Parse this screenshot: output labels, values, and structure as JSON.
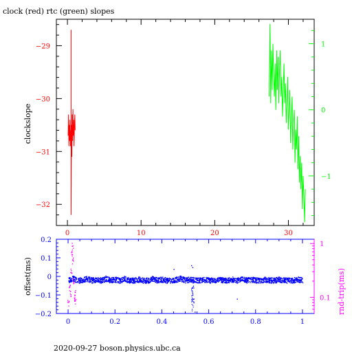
{
  "title": "clock (red) rtc (green) slopes",
  "footer": "2020-09-27 boson.physics.ubc.ca",
  "colors": {
    "clock": "#ff0000",
    "rtc": "#00ff00",
    "offset": "#0000ff",
    "rndtrip": "#ff00ff",
    "axis_bottom": "#0000ff",
    "axis_bottom_right": "#ff00ff"
  },
  "chart_data": [
    {
      "type": "line",
      "title": "clock (red) rtc (green) slopes",
      "ylabel": "clockslope",
      "xlim": [
        -1.5,
        33.5
      ],
      "ylim": [
        -32.4,
        -28.5
      ],
      "xticks": [
        0,
        10,
        20,
        30
      ],
      "yticks": [
        -29,
        -30,
        -31,
        -32
      ],
      "y2lim": [
        -1.75,
        1.37
      ],
      "y2ticks": [
        1,
        0,
        -1
      ],
      "series": [
        {
          "axis": "left",
          "color": "#ff0000",
          "x": [
            0.1,
            0.15,
            0.2,
            0.25,
            0.3,
            0.35,
            0.4,
            0.45,
            0.5,
            0.5,
            0.5,
            0.55,
            0.6,
            0.65,
            0.7,
            0.75,
            0.8,
            0.85,
            0.9,
            0.95,
            1.0,
            1.05
          ],
          "y": [
            -30.7,
            -30.3,
            -30.9,
            -30.5,
            -30.8,
            -30.4,
            -30.9,
            -30.6,
            -30.8,
            -28.7,
            -32.2,
            -30.5,
            -31.1,
            -30.3,
            -30.8,
            -30.2,
            -30.7,
            -30.4,
            -30.9,
            -30.5,
            -30.3,
            -30.6
          ]
        },
        {
          "axis": "right",
          "color": "#00ff00",
          "x": [
            27.4,
            27.5,
            27.6,
            27.7,
            27.8,
            27.9,
            28.0,
            28.1,
            28.2,
            28.3,
            28.4,
            28.5,
            28.6,
            28.7,
            28.8,
            28.9,
            29.0,
            29.1,
            29.2,
            29.3,
            29.4,
            29.5,
            29.6,
            29.7,
            29.8,
            29.9,
            30.0,
            30.1,
            30.2,
            30.3,
            30.4,
            30.5,
            30.6,
            30.7,
            30.8,
            30.9,
            31.0,
            31.1,
            31.2,
            31.3,
            31.4,
            31.5,
            31.6,
            31.7,
            31.8,
            31.9,
            32.0,
            32.1,
            32.2,
            32.3
          ],
          "y": [
            0.2,
            1.3,
            0.1,
            0.9,
            0.3,
            1.0,
            0.5,
            0.2,
            0.7,
            0.0,
            0.9,
            0.3,
            0.8,
            0.1,
            0.6,
            0.9,
            0.2,
            0.5,
            -0.1,
            0.3,
            0.7,
            0.1,
            0.4,
            -0.2,
            0.1,
            0.5,
            -0.3,
            0.0,
            0.3,
            -0.5,
            -0.1,
            0.2,
            -0.6,
            -0.2,
            0.0,
            -0.8,
            -0.3,
            -0.6,
            -0.1,
            -0.9,
            -0.4,
            -1.1,
            -0.7,
            -1.2,
            -0.8,
            -1.5,
            -1.0,
            -1.3,
            -1.7,
            -1.2
          ]
        }
      ]
    },
    {
      "type": "scatter",
      "ylabel": "offset(ms)",
      "xlim": [
        -0.05,
        1.05
      ],
      "ylim": [
        -0.2,
        0.2
      ],
      "xticks": [
        0,
        0.2,
        0.4,
        0.6,
        0.8,
        1
      ],
      "yticks": [
        0.2,
        0.1,
        0,
        -0.1,
        -0.2
      ],
      "y2label": "rnd-trip(ms)",
      "y2scale": "log",
      "y2lim": [
        0.05,
        1.2
      ],
      "y2ticks": [
        1,
        0.1
      ],
      "series": [
        {
          "axis": "left",
          "color": "#0000ff",
          "trend_x": [
            0.0,
            0.02,
            0.04,
            0.06,
            0.08,
            0.1,
            0.12,
            0.14,
            0.16,
            0.18,
            0.2,
            0.22,
            0.24,
            0.26,
            0.28,
            0.3,
            0.32,
            0.34,
            0.36,
            0.38,
            0.4,
            0.42,
            0.44,
            0.46,
            0.48,
            0.5,
            0.52,
            0.54,
            0.56,
            0.58,
            0.6,
            0.62,
            0.64,
            0.66,
            0.68,
            0.7,
            0.72,
            0.74,
            0.76,
            0.78,
            0.8,
            0.82,
            0.84,
            0.86,
            0.88,
            0.9,
            0.92,
            0.94,
            0.96,
            0.98,
            1.0
          ],
          "trend_y": [
            -0.02,
            -0.01,
            -0.02,
            -0.02,
            -0.01,
            -0.02,
            -0.015,
            -0.02,
            -0.01,
            -0.02,
            -0.015,
            -0.02,
            -0.01,
            -0.02,
            -0.02,
            -0.015,
            -0.02,
            -0.02,
            -0.01,
            -0.02,
            -0.015,
            -0.02,
            -0.02,
            -0.015,
            -0.01,
            -0.02,
            -0.015,
            -0.02,
            -0.02,
            -0.015,
            -0.02,
            -0.02,
            -0.015,
            -0.02,
            -0.02,
            -0.015,
            -0.02,
            -0.01,
            -0.02,
            -0.015,
            -0.02,
            -0.02,
            -0.015,
            -0.02,
            -0.02,
            -0.015,
            -0.02,
            -0.02,
            -0.02,
            -0.015,
            -0.02
          ],
          "spread": 0.03,
          "outliers_x": [
            0.53,
            0.53,
            0.535,
            0.54,
            0.53,
            0.535,
            0.525,
            0.45,
            0.72
          ],
          "outliers_y": [
            -0.06,
            -0.1,
            -0.14,
            -0.19,
            0.05,
            -0.12,
            0.06,
            0.04,
            -0.12
          ]
        },
        {
          "axis": "right",
          "color": "#ff00ff",
          "x": [
            0.0,
            0.005,
            0.01,
            0.012,
            0.015,
            0.018,
            0.02,
            0.022,
            0.025,
            0.028,
            0.03
          ],
          "y": [
            0.08,
            0.15,
            0.12,
            0.3,
            0.7,
            0.9,
            0.5,
            0.2,
            0.1,
            0.12,
            0.09
          ]
        }
      ]
    }
  ]
}
